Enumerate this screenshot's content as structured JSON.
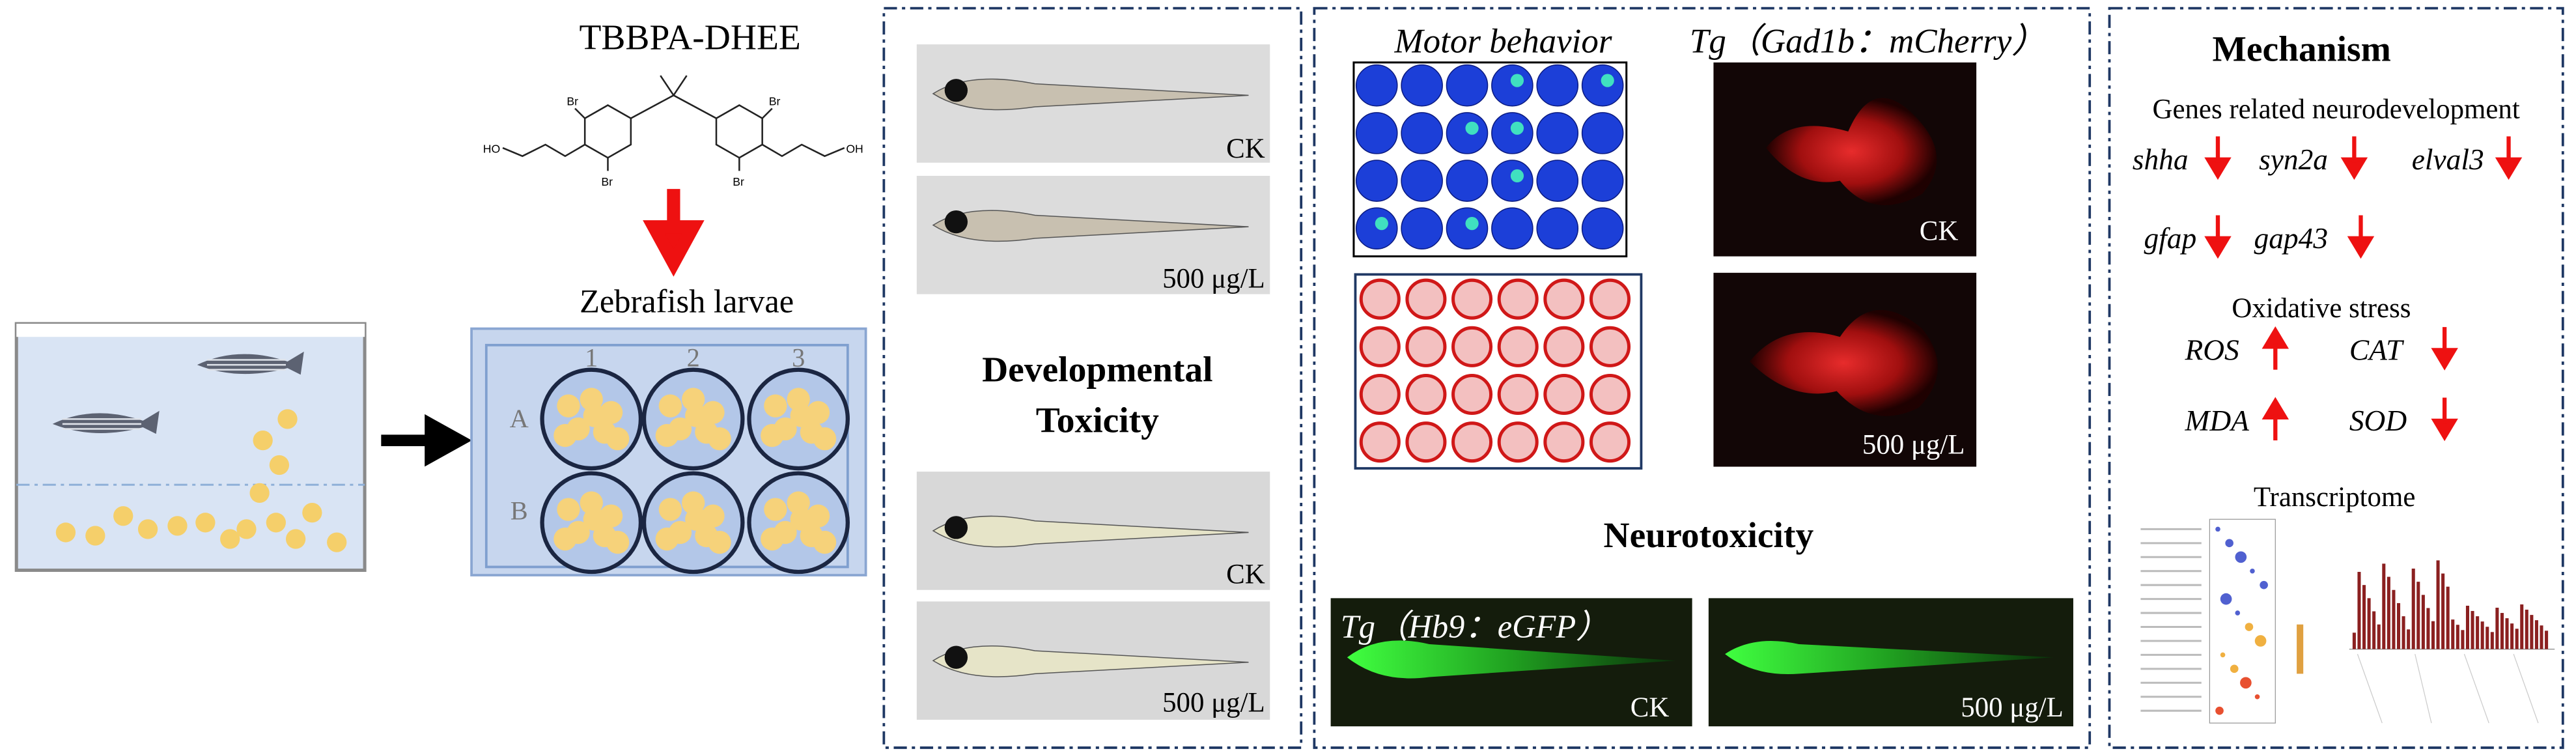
{
  "exposure": {
    "compound": "TBBPA-DHEE",
    "molecule_labels": [
      "Br",
      "Br",
      "Br",
      "Br",
      "HO",
      "OH"
    ],
    "subject": "Zebrafish larvae",
    "plate": {
      "columns": [
        "1",
        "2",
        "3"
      ],
      "rows": [
        "A",
        "B"
      ]
    }
  },
  "developmental": {
    "title": [
      "Developmental",
      "Toxicity"
    ],
    "image_labels": [
      "CK",
      "500 μg/L",
      "CK",
      "500 μg/L"
    ]
  },
  "neuro": {
    "motor_title": "Motor behavior",
    "gad_title": "Tg（Gad1b：mCherry）",
    "gad_labels": [
      "CK",
      "500 μg/L"
    ],
    "title": "Neurotoxicity",
    "hb9_title": "Tg（Hb9：eGFP）",
    "hb9_labels": [
      "CK",
      "500 μg/L"
    ]
  },
  "mechanism": {
    "title": "Mechanism",
    "genes_title": "Genes related neurodevelopment",
    "genes": [
      {
        "name": "shha",
        "direction": "down"
      },
      {
        "name": "syn2a",
        "direction": "down"
      },
      {
        "name": "elval3",
        "direction": "down"
      },
      {
        "name": "gfap",
        "direction": "down"
      },
      {
        "name": "gap43",
        "direction": "down"
      }
    ],
    "oxidative_title": "Oxidative stress",
    "oxidative": [
      {
        "name": "ROS",
        "direction": "up"
      },
      {
        "name": "CAT",
        "direction": "down"
      },
      {
        "name": "MDA",
        "direction": "up"
      },
      {
        "name": "SOD",
        "direction": "down"
      }
    ],
    "transcriptome_title": "Transcriptome"
  }
}
